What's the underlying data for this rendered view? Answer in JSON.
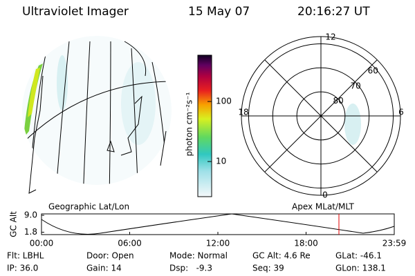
{
  "header": {
    "title": "Ultraviolet Imager",
    "date": "15 May 07",
    "time": "20:16:27 UT"
  },
  "colorbar": {
    "label": "photon cm⁻²s⁻¹",
    "scale": "log",
    "lim": [
      2.6,
      590
    ],
    "ticks": [
      10,
      100
    ]
  },
  "map_panel": {
    "title": "Geographic Lat/Lon"
  },
  "polar_panel": {
    "title": "Apex MLat/MLT",
    "mlt_labels": [
      "12",
      "18",
      "6",
      "0"
    ],
    "lat_lim": [
      57,
      90
    ],
    "rings": [
      80,
      70,
      60
    ]
  },
  "altitude_plot": {
    "label": "GC Alt",
    "ylim": [
      0.8,
      9.6
    ],
    "yticks": [
      {
        "value": 9.0,
        "label": "9.0"
      },
      {
        "value": 1.8,
        "label": "1.8"
      }
    ],
    "xticks": [
      "00:00",
      "06:00",
      "12:00",
      "18:00",
      "23:59"
    ]
  },
  "footer": {
    "rows": [
      [
        "Flt: LBHL",
        "Door: Open",
        "Mode: Normal",
        "GC Alt: 4.6 Re",
        "GLat: -46.1"
      ],
      [
        "IP: 36.0",
        "Gain: 14",
        "Dsp:   -9.3",
        "Seq: 39",
        "GLon: 138.1"
      ]
    ]
  }
}
